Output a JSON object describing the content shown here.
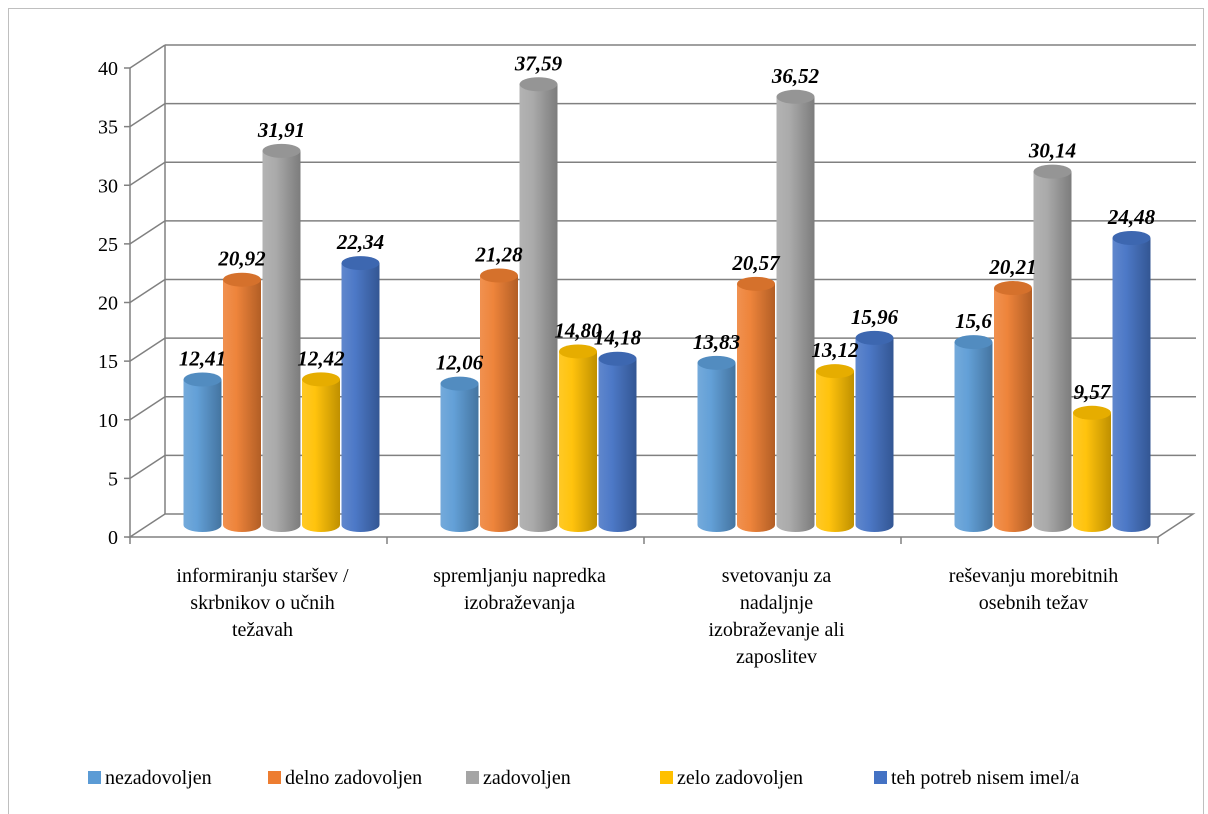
{
  "chart_data": {
    "type": "bar",
    "style": "3d-cylinder",
    "categories": [
      [
        "informiranju staršev /",
        "skrbnikov o učnih",
        "težavah"
      ],
      [
        "spremljanju napredka",
        "izobraževanja"
      ],
      [
        "svetovanju za",
        "nadaljnje",
        "izobraževanje ali",
        "zaposlitev"
      ],
      [
        "reševanju morebitnih",
        "osebnih težav"
      ]
    ],
    "series": [
      {
        "name": "nezadovoljen",
        "color": "#5b9bd5",
        "values": [
          12.41,
          12.06,
          13.83,
          15.6
        ],
        "labels": [
          "12,41",
          "12,06",
          "13,83",
          "15,6"
        ]
      },
      {
        "name": "delno zadovoljen",
        "color": "#ed7d31",
        "values": [
          20.92,
          21.28,
          20.57,
          20.21
        ],
        "labels": [
          "20,92",
          "21,28",
          "20,57",
          "20,21"
        ]
      },
      {
        "name": "zadovoljen",
        "color": "#a5a5a5",
        "values": [
          31.91,
          37.59,
          36.52,
          30.14
        ],
        "labels": [
          "31,91",
          "37,59",
          "36,52",
          "30,14"
        ]
      },
      {
        "name": "zelo zadovoljen",
        "color": "#ffc000",
        "values": [
          12.42,
          14.8,
          13.12,
          9.57
        ],
        "labels": [
          "12,42",
          "14,80",
          "13,12",
          "9,57"
        ]
      },
      {
        "name": "teh potreb nisem imel/a",
        "color": "#4472c4",
        "values": [
          22.34,
          14.18,
          15.96,
          24.48
        ],
        "labels": [
          "22,34",
          "14,18",
          "15,96",
          "24,48"
        ]
      }
    ],
    "ylim": [
      0,
      40
    ],
    "yticks": [
      "0",
      "5",
      "10",
      "15",
      "20",
      "25",
      "30",
      "35",
      "40"
    ],
    "grid": true,
    "legend_position": "bottom"
  }
}
